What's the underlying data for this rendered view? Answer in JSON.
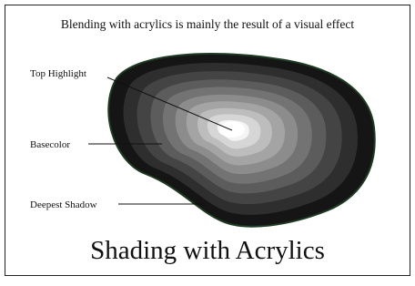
{
  "header": {
    "title": "Blending with acrylics is mainly the result of a visual effect"
  },
  "labels": [
    {
      "text": "Top Highlight"
    },
    {
      "text": "Basecolor"
    },
    {
      "text": "Deepest Shadow"
    }
  ],
  "caption": "Shading with Acrylics"
}
